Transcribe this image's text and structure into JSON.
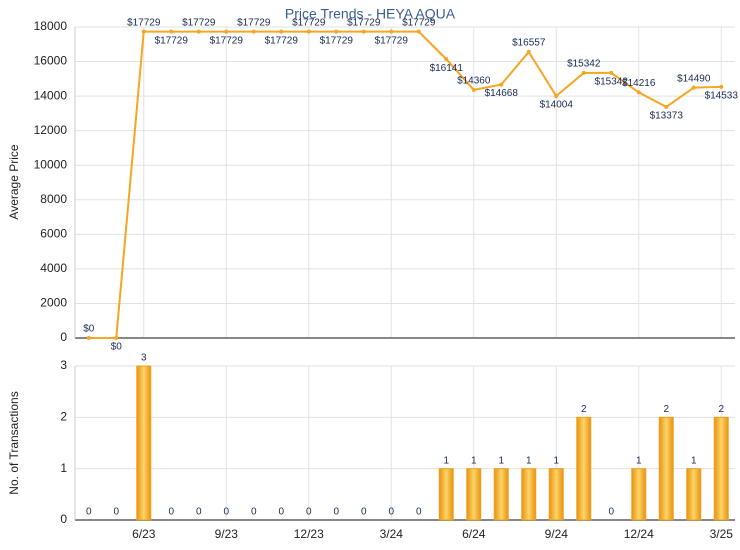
{
  "chart_data": [
    {
      "type": "line",
      "title": "Price Trends - HEYA AQUA",
      "y_label": "Average Price",
      "color": "#f5a623",
      "values": [
        0,
        0,
        17729,
        17729,
        17729,
        17729,
        17729,
        17729,
        17729,
        17729,
        17729,
        17729,
        17729,
        16141,
        14360,
        14668,
        16557,
        14004,
        15342,
        15342,
        14216,
        13373,
        14490,
        14533
      ],
      "value_labels": [
        "$0",
        "$0",
        "$17729",
        "$17729",
        "$17729",
        "$17729",
        "$17729",
        "$17729",
        "$17729",
        "$17729",
        "$17729",
        "$17729",
        "$17729",
        "$16141",
        "$14360",
        "$14668",
        "$16557",
        "$14004",
        "$15342",
        "$15342",
        "$14216",
        "$13373",
        "$14490",
        "$14533"
      ],
      "ylim": [
        0,
        18000
      ],
      "yticks": [
        0,
        2000,
        4000,
        6000,
        8000,
        10000,
        12000,
        14000,
        16000,
        18000
      ],
      "grid": true
    },
    {
      "type": "bar",
      "y_label": "No. of Transactions",
      "color": "#f0a020",
      "categories": [
        null,
        null,
        "6/23",
        null,
        null,
        "9/23",
        null,
        null,
        "12/23",
        null,
        null,
        "3/24",
        null,
        null,
        "6/24",
        null,
        null,
        "9/24",
        null,
        null,
        "12/24",
        null,
        null,
        "3/25"
      ],
      "values": [
        0,
        0,
        3,
        0,
        0,
        0,
        0,
        0,
        0,
        0,
        0,
        0,
        0,
        1,
        1,
        1,
        1,
        1,
        2,
        0,
        1,
        2,
        1,
        2
      ],
      "ylim": [
        0,
        3
      ],
      "yticks": [
        0,
        1,
        2,
        3
      ],
      "grid": true
    }
  ]
}
